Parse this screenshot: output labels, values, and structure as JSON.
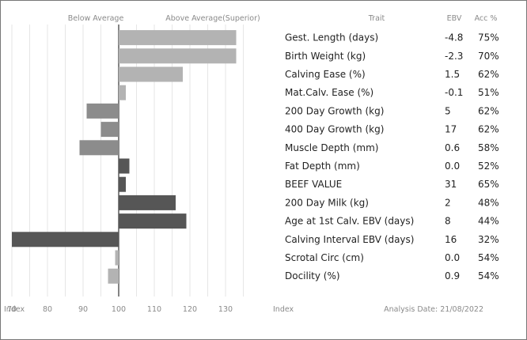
{
  "header": {
    "below_average": "Below Average",
    "above_average": "Above Average(Superior)",
    "trait": "Trait",
    "ebv": "EBV",
    "acc": "Acc %"
  },
  "footer": {
    "index_left": "Index",
    "index_right": "Index",
    "analysis_date": "Analysis Date: 21/08/2022"
  },
  "colors": {
    "light_bar": "#b3b3b3",
    "dark_bar": "#565656",
    "medium_bar": "#8c8c8c",
    "grid": "#e6e6e6",
    "baseline": "#333333"
  },
  "chart_data": {
    "type": "bar",
    "orientation": "horizontal",
    "baseline": 100,
    "xlim": [
      70,
      135
    ],
    "xticks": [
      "70",
      "80",
      "90",
      "100",
      "110",
      "120",
      "130"
    ],
    "grid": true,
    "categories": [
      "Gest. Length (days)",
      "Birth Weight (kg)",
      "Calving Ease (%)",
      "Mat.Calv. Ease (%)",
      "200 Day Growth (kg)",
      "400 Day Growth (kg)",
      "Muscle Depth (mm)",
      "Fat Depth (mm)",
      "BEEF VALUE",
      "200 Day Milk (kg)",
      "Age at 1st Calv. EBV (days)",
      "Calving Interval EBV (days)",
      "Scrotal Circ (cm)",
      "Docility (%)"
    ],
    "values": [
      133,
      133,
      118,
      102,
      91,
      95,
      89,
      103,
      102,
      116,
      119,
      70,
      99,
      97
    ],
    "shades": [
      "light",
      "light",
      "light",
      "light",
      "medium",
      "medium",
      "medium",
      "dark",
      "dark",
      "dark",
      "dark",
      "dark",
      "light",
      "light"
    ],
    "ebv": [
      "-4.8",
      "-2.3",
      "1.5",
      "-0.1",
      "5",
      "17",
      "0.6",
      "0.0",
      "31",
      "2",
      "8",
      "16",
      "0.0",
      "0.9"
    ],
    "acc": [
      "75%",
      "70%",
      "62%",
      "51%",
      "62%",
      "62%",
      "58%",
      "52%",
      "65%",
      "48%",
      "44%",
      "32%",
      "54%",
      "54%"
    ]
  }
}
